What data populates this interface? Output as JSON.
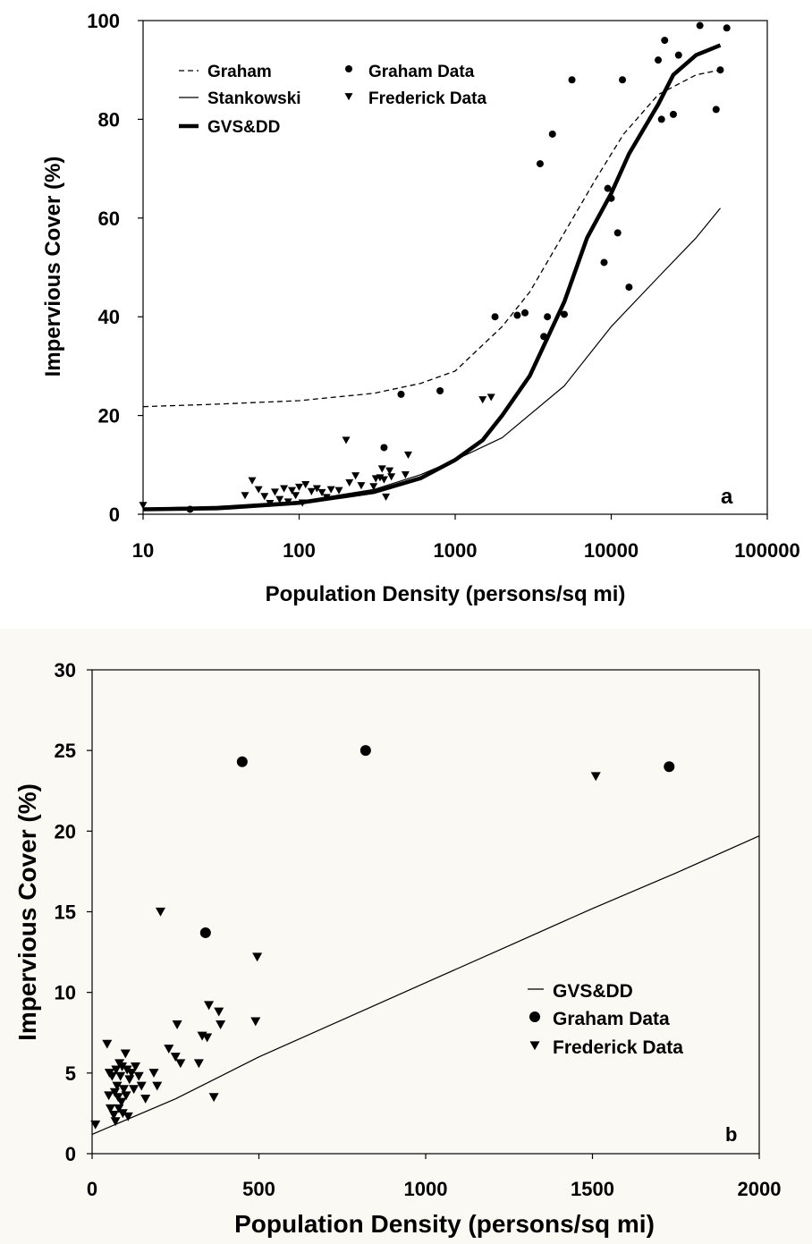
{
  "chart_data": [
    {
      "panel_label": "a",
      "type": "line",
      "xscale": "log",
      "xlim": [
        10,
        100000
      ],
      "ylim": [
        0,
        100
      ],
      "xticks": [
        "10",
        "100",
        "1000",
        "10000",
        "100000"
      ],
      "yticks": [
        "0",
        "20",
        "40",
        "60",
        "80",
        "100"
      ],
      "xlabel": "Population Density (persons/sq mi)",
      "ylabel": "Impervious Cover (%)",
      "legend": {
        "placement": "top-left",
        "entries": [
          "Graham",
          "Graham Data",
          "Stankowski",
          "Frederick Data",
          "GVS&DD"
        ]
      },
      "series": [
        {
          "name": "Graham",
          "style": "dashed",
          "points": [
            [
              10,
              21.8
            ],
            [
              30,
              22.3
            ],
            [
              100,
              23
            ],
            [
              300,
              24.5
            ],
            [
              600,
              26.5
            ],
            [
              1000,
              29
            ],
            [
              2000,
              38
            ],
            [
              3000,
              45
            ],
            [
              5000,
              57
            ],
            [
              8000,
              68
            ],
            [
              12000,
              77
            ],
            [
              20000,
              85
            ],
            [
              35000,
              89
            ],
            [
              50000,
              90
            ]
          ]
        },
        {
          "name": "Stankowski",
          "style": "thin",
          "points": [
            [
              10,
              1.2
            ],
            [
              30,
              1.6
            ],
            [
              100,
              2.6
            ],
            [
              300,
              5
            ],
            [
              600,
              8
            ],
            [
              1000,
              11
            ],
            [
              2000,
              15.5
            ],
            [
              5000,
              26
            ],
            [
              10000,
              38
            ],
            [
              20000,
              48
            ],
            [
              35000,
              56
            ],
            [
              50000,
              62
            ]
          ]
        },
        {
          "name": "GVS&DD",
          "style": "thick",
          "points": [
            [
              10,
              1
            ],
            [
              30,
              1.2
            ],
            [
              100,
              2.3
            ],
            [
              300,
              4.5
            ],
            [
              600,
              7.3
            ],
            [
              1000,
              11
            ],
            [
              1500,
              15
            ],
            [
              2000,
              20
            ],
            [
              3000,
              28
            ],
            [
              5000,
              43
            ],
            [
              7000,
              56
            ],
            [
              10000,
              65
            ],
            [
              13000,
              73
            ],
            [
              20000,
              83
            ],
            [
              25000,
              89
            ],
            [
              35000,
              93
            ],
            [
              50000,
              95
            ]
          ]
        },
        {
          "name": "Graham Data",
          "marker": "circle",
          "points": [
            [
              20,
              1
            ],
            [
              350,
              13.5
            ],
            [
              450,
              24.3
            ],
            [
              800,
              25
            ],
            [
              1800,
              40
            ],
            [
              2500,
              40.3
            ],
            [
              2800,
              40.8
            ],
            [
              3500,
              71
            ],
            [
              3700,
              36
            ],
            [
              3900,
              40
            ],
            [
              4200,
              77
            ],
            [
              5000,
              40.5
            ],
            [
              5600,
              88
            ],
            [
              9000,
              51
            ],
            [
              9500,
              66
            ],
            [
              10000,
              64
            ],
            [
              11000,
              57
            ],
            [
              11800,
              88
            ],
            [
              13000,
              46
            ],
            [
              20000,
              92
            ],
            [
              21000,
              80
            ],
            [
              22000,
              96
            ],
            [
              25000,
              81
            ],
            [
              27000,
              93
            ],
            [
              37000,
              99
            ],
            [
              47000,
              82
            ],
            [
              50000,
              90
            ],
            [
              55000,
              98.5
            ]
          ]
        },
        {
          "name": "Frederick Data",
          "marker": "triangle",
          "points": [
            [
              10,
              1.8
            ],
            [
              45,
              3.8
            ],
            [
              50,
              6.8
            ],
            [
              55,
              5
            ],
            [
              60,
              3.6
            ],
            [
              65,
              2.2
            ],
            [
              70,
              4.5
            ],
            [
              75,
              3
            ],
            [
              80,
              5.2
            ],
            [
              85,
              2.5
            ],
            [
              90,
              4.8
            ],
            [
              95,
              3.8
            ],
            [
              100,
              5.5
            ],
            [
              105,
              2.3
            ],
            [
              110,
              6
            ],
            [
              120,
              4.6
            ],
            [
              130,
              5.2
            ],
            [
              140,
              4.4
            ],
            [
              150,
              3.4
            ],
            [
              160,
              5
            ],
            [
              180,
              4.8
            ],
            [
              200,
              15
            ],
            [
              210,
              6.4
            ],
            [
              230,
              7.8
            ],
            [
              250,
              5.8
            ],
            [
              300,
              5.6
            ],
            [
              310,
              7.2
            ],
            [
              330,
              7.4
            ],
            [
              340,
              9.2
            ],
            [
              350,
              7
            ],
            [
              360,
              3.5
            ],
            [
              380,
              8.8
            ],
            [
              390,
              7.6
            ],
            [
              480,
              8
            ],
            [
              500,
              12
            ],
            [
              1500,
              23.2
            ],
            [
              1700,
              23.7
            ]
          ]
        }
      ]
    },
    {
      "panel_label": "b",
      "type": "scatter",
      "xlim": [
        0,
        2000
      ],
      "ylim": [
        0,
        30
      ],
      "xticks": [
        "0",
        "500",
        "1000",
        "1500",
        "2000"
      ],
      "yticks": [
        "0",
        "5",
        "10",
        "15",
        "20",
        "25",
        "30"
      ],
      "xlabel": "Population Density (persons/sq mi)",
      "ylabel": "Impervious Cover (%)",
      "legend": {
        "placement": "right",
        "entries": [
          "GVS&DD",
          "Graham Data",
          "Frederick Data"
        ]
      },
      "series": [
        {
          "name": "GVS&DD",
          "style": "line",
          "points": [
            [
              0,
              1.2
            ],
            [
              250,
              3.4
            ],
            [
              500,
              6
            ],
            [
              750,
              8.3
            ],
            [
              1000,
              10.6
            ],
            [
              1250,
              12.9
            ],
            [
              1500,
              15.2
            ],
            [
              1750,
              17.4
            ],
            [
              2000,
              19.7
            ]
          ]
        },
        {
          "name": "Graham Data",
          "marker": "circle",
          "points": [
            [
              340,
              13.7
            ],
            [
              450,
              24.3
            ],
            [
              820,
              25
            ],
            [
              1730,
              24
            ]
          ]
        },
        {
          "name": "Frederick Data",
          "marker": "triangle",
          "points": [
            [
              10,
              1.8
            ],
            [
              45,
              6.8
            ],
            [
              50,
              3.6
            ],
            [
              52,
              5
            ],
            [
              55,
              2.8
            ],
            [
              60,
              4.8
            ],
            [
              65,
              2.4
            ],
            [
              68,
              3.8
            ],
            [
              70,
              2
            ],
            [
              72,
              5.2
            ],
            [
              75,
              4.2
            ],
            [
              78,
              3.5
            ],
            [
              80,
              2.8
            ],
            [
              82,
              5.6
            ],
            [
              85,
              4.8
            ],
            [
              88,
              3.2
            ],
            [
              90,
              5.4
            ],
            [
              92,
              2.5
            ],
            [
              95,
              4
            ],
            [
              100,
              6.2
            ],
            [
              102,
              3.6
            ],
            [
              105,
              5.2
            ],
            [
              108,
              2.3
            ],
            [
              112,
              4.6
            ],
            [
              118,
              5
            ],
            [
              125,
              4
            ],
            [
              130,
              5.4
            ],
            [
              140,
              4.8
            ],
            [
              148,
              4.2
            ],
            [
              160,
              3.4
            ],
            [
              185,
              5
            ],
            [
              195,
              4.2
            ],
            [
              205,
              15
            ],
            [
              230,
              6.5
            ],
            [
              250,
              6
            ],
            [
              255,
              8
            ],
            [
              265,
              5.6
            ],
            [
              320,
              5.6
            ],
            [
              330,
              7.3
            ],
            [
              345,
              7.2
            ],
            [
              350,
              9.2
            ],
            [
              365,
              3.5
            ],
            [
              380,
              8.8
            ],
            [
              385,
              8
            ],
            [
              490,
              8.2
            ],
            [
              495,
              12.2
            ],
            [
              1510,
              23.4
            ]
          ]
        }
      ]
    }
  ],
  "icons": {
    "circle": "filled-circle-marker",
    "triangle": "filled-down-triangle-marker"
  }
}
